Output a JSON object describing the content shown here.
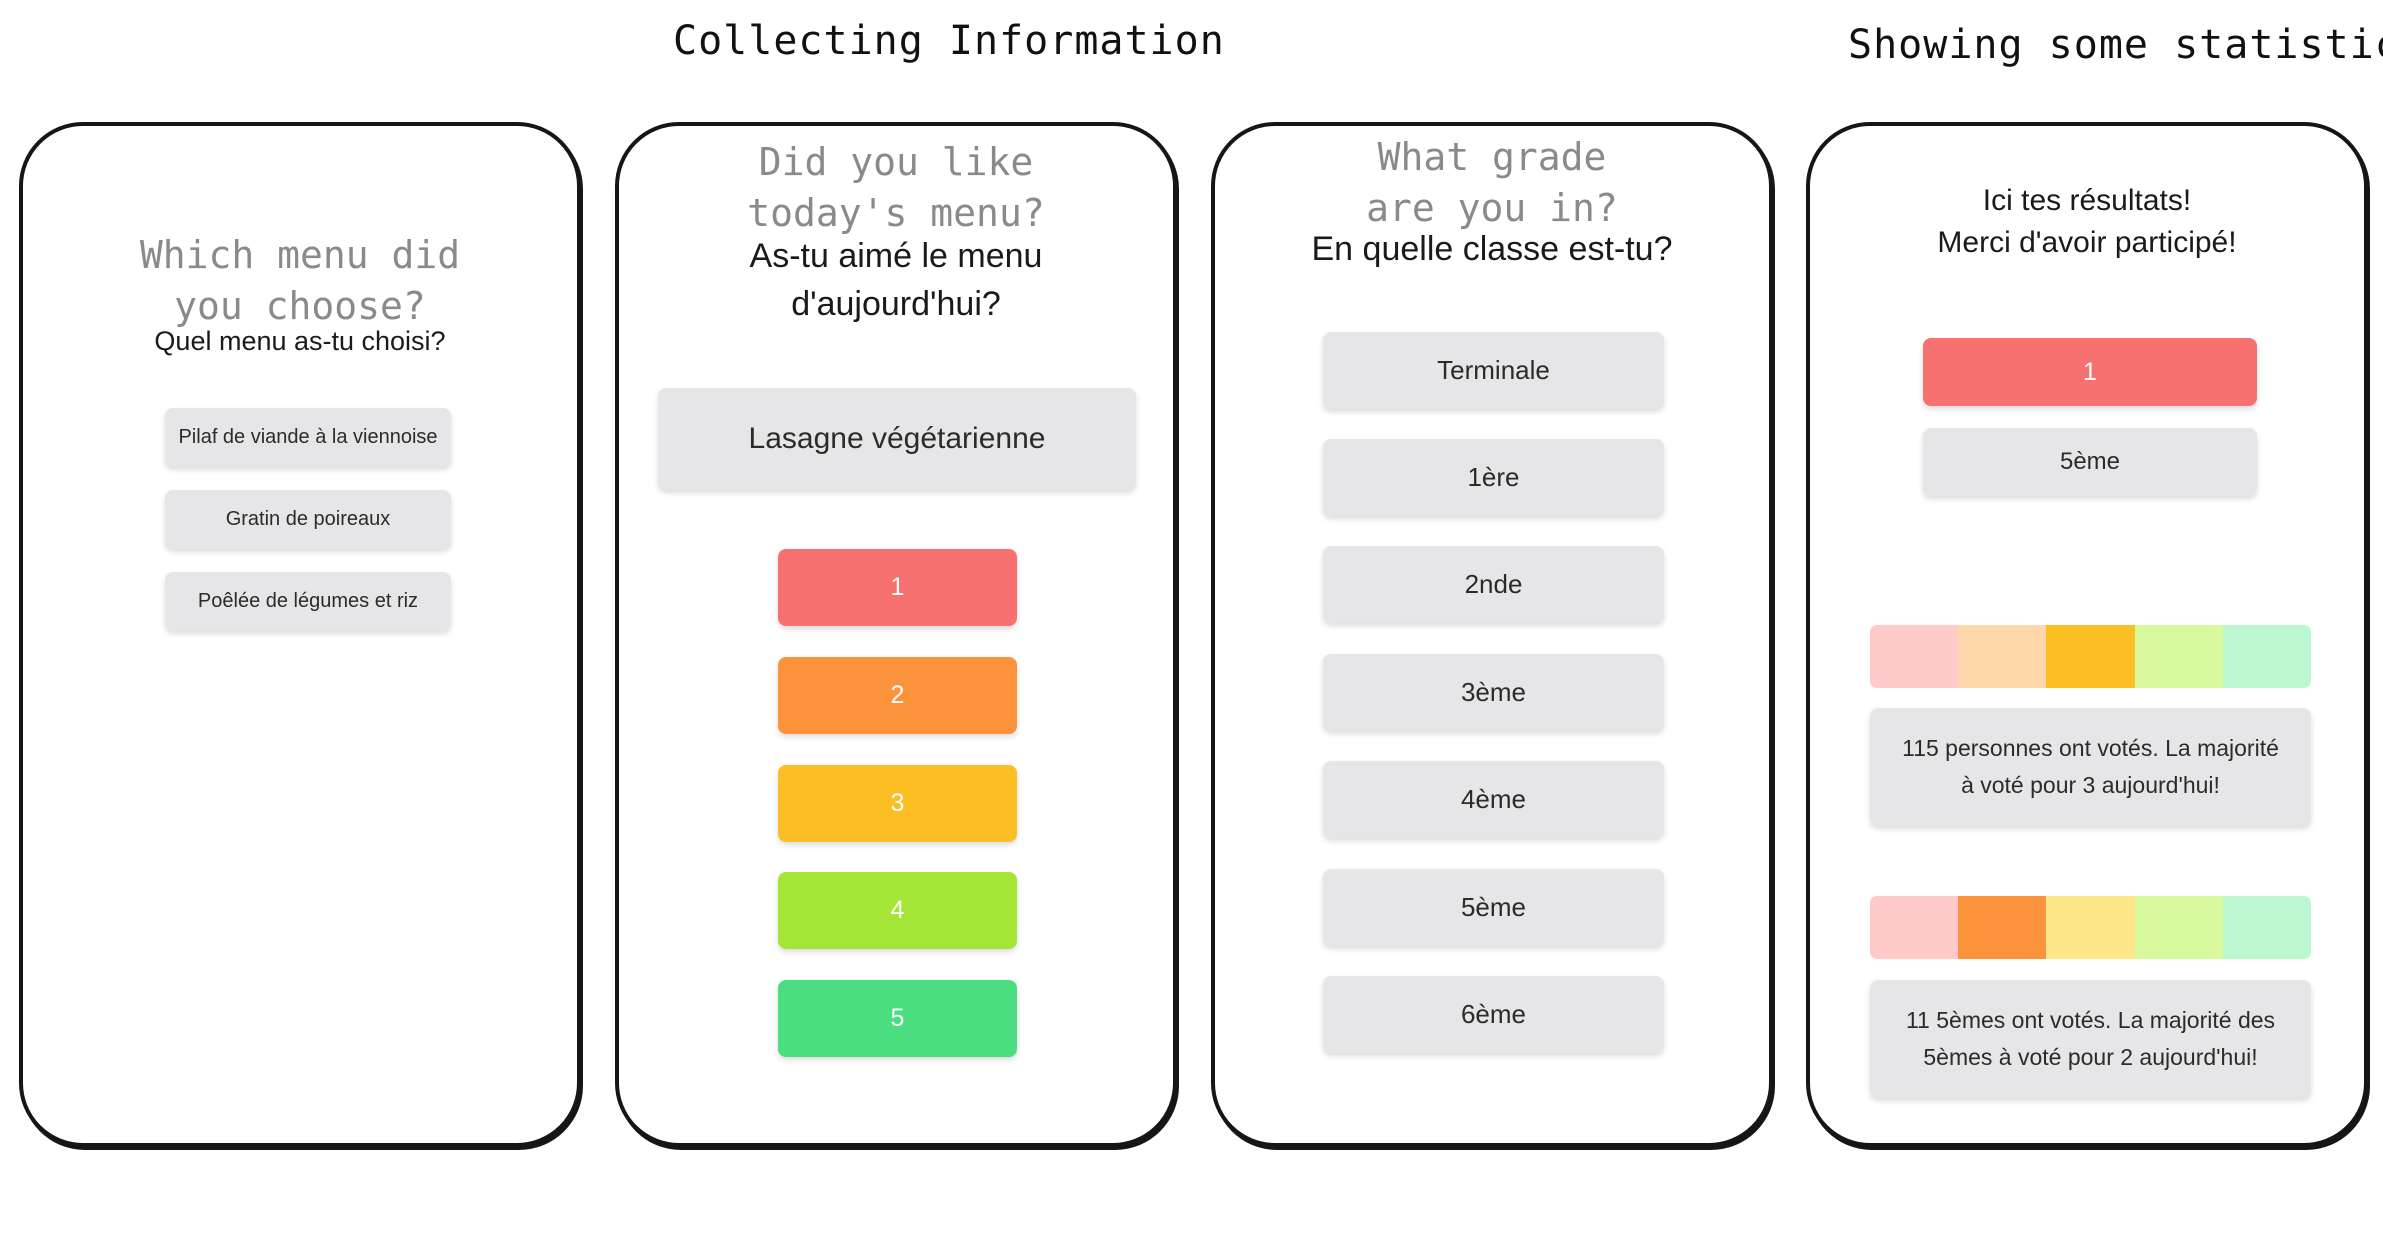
{
  "headings": {
    "collecting": "Collecting Information",
    "statistics": "Showing some statistics"
  },
  "screen1": {
    "hand_title": "Which menu did\nyou choose?",
    "question": "Quel menu as-tu choisi?",
    "options": [
      "Pilaf de viande à la viennoise",
      "Gratin de poireaux",
      "Poêlée de légumes et riz"
    ]
  },
  "screen2": {
    "hand_title": "Did you like\ntoday's menu?",
    "question": "As-tu aimé le menu\nd'aujourd'hui?",
    "menu_name": "Lasagne végétarienne",
    "ratings": [
      {
        "label": "1",
        "color": "#f87171"
      },
      {
        "label": "2",
        "color": "#fb923c"
      },
      {
        "label": "3",
        "color": "#fbbf24"
      },
      {
        "label": "4",
        "color": "#a3e635"
      },
      {
        "label": "5",
        "color": "#4ade80"
      }
    ]
  },
  "screen3": {
    "hand_title": "What grade\nare you in?",
    "question": "En quelle classe est-tu?",
    "grades": [
      "Terminale",
      "1ère",
      "2nde",
      "3ème",
      "4ème",
      "5ème",
      "6ème"
    ]
  },
  "screen4": {
    "intro": "Ici tes résultats!\nMerci d'avoir participé!",
    "selected_rating": "1",
    "selected_rating_color": "#f87171",
    "selected_grade": "5ème",
    "overall_bar_colors": [
      "#fecaca",
      "#fed7aa",
      "#fbbf24",
      "#d9f99d",
      "#bbf7d0"
    ],
    "overall_text": "115 personnes ont votés. La majorité\nà voté pour 3 aujourd'hui!",
    "grade_bar_colors": [
      "#fecaca",
      "#fb923c",
      "#fde68a",
      "#d9f99d",
      "#bbf7d0"
    ],
    "grade_text": "11 5èmes ont votés. La majorité des\n5èmes à voté pour 2 aujourd'hui!"
  }
}
